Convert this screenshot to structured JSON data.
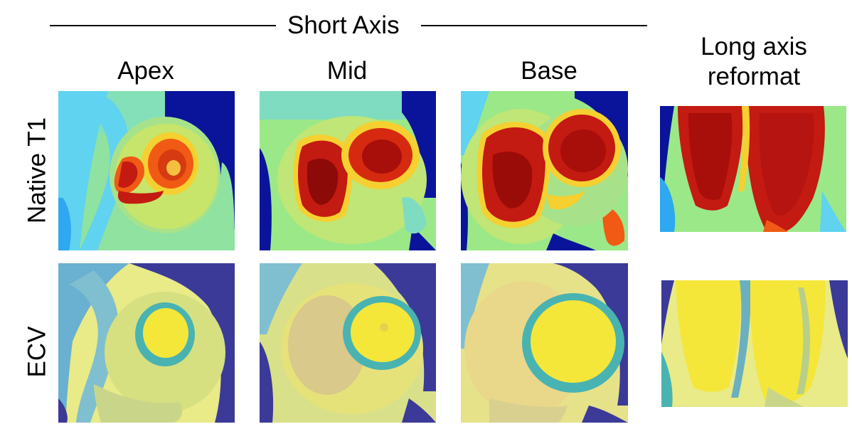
{
  "header": {
    "group_title": "Short Axis"
  },
  "columns": {
    "apex": "Apex",
    "mid": "Mid",
    "base": "Base",
    "long_axis_line1": "Long axis",
    "long_axis_line2": "reformat"
  },
  "rows": {
    "native_t1": "Native T1",
    "ecv": "ECV"
  },
  "colors": {
    "background_blue": "#0a149a",
    "ecv_background": "#3b3a98",
    "t1_green": "#9be888",
    "t1_cyan": "#5fd3f0",
    "t1_red": "#c31a12",
    "t1_darkred": "#8c0a08",
    "t1_orange": "#f05a14",
    "ecv_yellow": "#f5e63a",
    "ecv_teal": "#49b3b2",
    "ecv_lightyellow": "#e9ea88"
  }
}
